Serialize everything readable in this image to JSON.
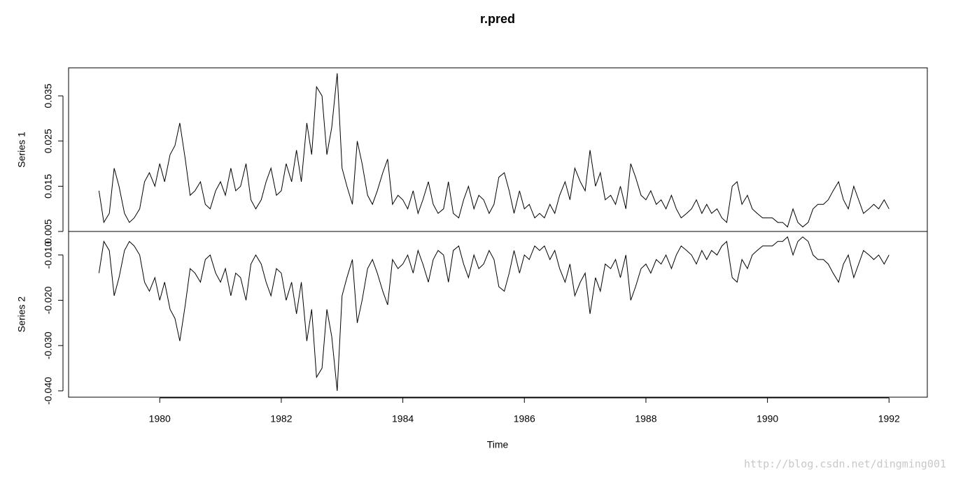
{
  "chart_data": {
    "type": "line",
    "title": "r.pred",
    "xlabel": "Time",
    "xlim": [
      1978.5,
      1992.63
    ],
    "xticks": [
      1980,
      1982,
      1984,
      1986,
      1988,
      1990,
      1992
    ],
    "x": [
      1979.0,
      1979.08,
      1979.17,
      1979.25,
      1979.33,
      1979.42,
      1979.5,
      1979.58,
      1979.67,
      1979.75,
      1979.83,
      1979.92,
      1980.0,
      1980.08,
      1980.17,
      1980.25,
      1980.33,
      1980.42,
      1980.5,
      1980.58,
      1980.67,
      1980.75,
      1980.83,
      1980.92,
      1981.0,
      1981.08,
      1981.17,
      1981.25,
      1981.33,
      1981.42,
      1981.5,
      1981.58,
      1981.67,
      1981.75,
      1981.83,
      1981.92,
      1982.0,
      1982.08,
      1982.17,
      1982.25,
      1982.33,
      1982.42,
      1982.5,
      1982.58,
      1982.67,
      1982.75,
      1982.83,
      1982.92,
      1983.0,
      1983.08,
      1983.17,
      1983.25,
      1983.33,
      1983.42,
      1983.5,
      1983.58,
      1983.67,
      1983.75,
      1983.83,
      1983.92,
      1984.0,
      1984.08,
      1984.17,
      1984.25,
      1984.33,
      1984.42,
      1984.5,
      1984.58,
      1984.67,
      1984.75,
      1984.83,
      1984.92,
      1985.0,
      1985.08,
      1985.17,
      1985.25,
      1985.33,
      1985.42,
      1985.5,
      1985.58,
      1985.67,
      1985.75,
      1985.83,
      1985.92,
      1986.0,
      1986.08,
      1986.17,
      1986.25,
      1986.33,
      1986.42,
      1986.5,
      1986.58,
      1986.67,
      1986.75,
      1986.83,
      1986.92,
      1987.0,
      1987.08,
      1987.17,
      1987.25,
      1987.33,
      1987.42,
      1987.5,
      1987.58,
      1987.67,
      1987.75,
      1987.83,
      1987.92,
      1988.0,
      1988.08,
      1988.17,
      1988.25,
      1988.33,
      1988.42,
      1988.5,
      1988.58,
      1988.67,
      1988.75,
      1988.83,
      1988.92,
      1989.0,
      1989.08,
      1989.17,
      1989.25,
      1989.33,
      1989.42,
      1989.5,
      1989.58,
      1989.67,
      1989.75,
      1989.83,
      1989.92,
      1990.0,
      1990.08,
      1990.17,
      1990.25,
      1990.33,
      1990.42,
      1990.5,
      1990.58,
      1990.67,
      1990.75,
      1990.83,
      1990.92,
      1991.0,
      1991.08,
      1991.17,
      1991.25,
      1991.33,
      1991.42,
      1991.5,
      1991.58,
      1991.67,
      1991.75,
      1991.83,
      1991.92,
      1992.0
    ],
    "series": [
      {
        "name": "Series 1",
        "color": "#000000",
        "ylim": [
          0.005,
          0.0412
        ],
        "yticks": [
          0.005,
          0.015,
          0.025,
          0.035
        ],
        "values": [
          0.014,
          0.007,
          0.009,
          0.019,
          0.015,
          0.009,
          0.007,
          0.008,
          0.01,
          0.016,
          0.018,
          0.015,
          0.02,
          0.016,
          0.022,
          0.024,
          0.029,
          0.021,
          0.013,
          0.014,
          0.016,
          0.011,
          0.01,
          0.014,
          0.016,
          0.013,
          0.019,
          0.014,
          0.015,
          0.02,
          0.012,
          0.01,
          0.012,
          0.016,
          0.019,
          0.013,
          0.014,
          0.02,
          0.016,
          0.023,
          0.016,
          0.029,
          0.022,
          0.037,
          0.035,
          0.022,
          0.028,
          0.04,
          0.019,
          0.015,
          0.011,
          0.025,
          0.02,
          0.013,
          0.011,
          0.014,
          0.018,
          0.021,
          0.011,
          0.013,
          0.012,
          0.01,
          0.014,
          0.009,
          0.012,
          0.016,
          0.011,
          0.009,
          0.01,
          0.016,
          0.009,
          0.008,
          0.012,
          0.015,
          0.01,
          0.013,
          0.012,
          0.009,
          0.011,
          0.017,
          0.018,
          0.014,
          0.009,
          0.014,
          0.01,
          0.011,
          0.008,
          0.009,
          0.008,
          0.011,
          0.009,
          0.013,
          0.016,
          0.012,
          0.019,
          0.016,
          0.014,
          0.023,
          0.015,
          0.018,
          0.012,
          0.013,
          0.011,
          0.015,
          0.01,
          0.02,
          0.017,
          0.013,
          0.012,
          0.014,
          0.011,
          0.012,
          0.01,
          0.013,
          0.01,
          0.008,
          0.009,
          0.01,
          0.012,
          0.009,
          0.011,
          0.009,
          0.01,
          0.008,
          0.007,
          0.015,
          0.016,
          0.011,
          0.013,
          0.01,
          0.009,
          0.008,
          0.008,
          0.008,
          0.007,
          0.007,
          0.006,
          0.01,
          0.007,
          0.006,
          0.007,
          0.01,
          0.011,
          0.011,
          0.012,
          0.014,
          0.016,
          0.012,
          0.01,
          0.015,
          0.012,
          0.009,
          0.01,
          0.011,
          0.01,
          0.012,
          0.01
        ]
      },
      {
        "name": "Series 2",
        "color": "#000000",
        "ylim": [
          -0.0414,
          -0.0048
        ],
        "yticks": [
          {
            "value": -0.01,
            "label": "-0.010"
          },
          {
            "value": -0.02,
            "label": "-0.020"
          },
          {
            "value": -0.03,
            "label": "-0.030"
          },
          {
            "value": -0.04,
            "label": "-0.040"
          }
        ],
        "values": [
          -0.014,
          -0.007,
          -0.009,
          -0.019,
          -0.015,
          -0.009,
          -0.007,
          -0.008,
          -0.01,
          -0.016,
          -0.018,
          -0.015,
          -0.02,
          -0.016,
          -0.022,
          -0.024,
          -0.029,
          -0.021,
          -0.013,
          -0.014,
          -0.016,
          -0.011,
          -0.01,
          -0.014,
          -0.016,
          -0.013,
          -0.019,
          -0.014,
          -0.015,
          -0.02,
          -0.012,
          -0.01,
          -0.012,
          -0.016,
          -0.019,
          -0.013,
          -0.014,
          -0.02,
          -0.016,
          -0.023,
          -0.016,
          -0.029,
          -0.022,
          -0.037,
          -0.035,
          -0.022,
          -0.028,
          -0.04,
          -0.019,
          -0.015,
          -0.011,
          -0.025,
          -0.02,
          -0.013,
          -0.011,
          -0.014,
          -0.018,
          -0.021,
          -0.011,
          -0.013,
          -0.012,
          -0.01,
          -0.014,
          -0.009,
          -0.012,
          -0.016,
          -0.011,
          -0.009,
          -0.01,
          -0.016,
          -0.009,
          -0.008,
          -0.012,
          -0.015,
          -0.01,
          -0.013,
          -0.012,
          -0.009,
          -0.011,
          -0.017,
          -0.018,
          -0.014,
          -0.009,
          -0.014,
          -0.01,
          -0.011,
          -0.008,
          -0.009,
          -0.008,
          -0.011,
          -0.009,
          -0.013,
          -0.016,
          -0.012,
          -0.019,
          -0.016,
          -0.014,
          -0.023,
          -0.015,
          -0.018,
          -0.012,
          -0.013,
          -0.011,
          -0.015,
          -0.01,
          -0.02,
          -0.017,
          -0.013,
          -0.012,
          -0.014,
          -0.011,
          -0.012,
          -0.01,
          -0.013,
          -0.01,
          -0.008,
          -0.009,
          -0.01,
          -0.012,
          -0.009,
          -0.011,
          -0.009,
          -0.01,
          -0.008,
          -0.007,
          -0.015,
          -0.016,
          -0.011,
          -0.013,
          -0.01,
          -0.009,
          -0.008,
          -0.008,
          -0.008,
          -0.007,
          -0.007,
          -0.006,
          -0.01,
          -0.007,
          -0.006,
          -0.007,
          -0.01,
          -0.011,
          -0.011,
          -0.012,
          -0.014,
          -0.016,
          -0.012,
          -0.01,
          -0.015,
          -0.012,
          -0.009,
          -0.01,
          -0.011,
          -0.01,
          -0.012,
          -0.01
        ]
      }
    ]
  },
  "watermark": "http://blog.csdn.net/dingming001"
}
